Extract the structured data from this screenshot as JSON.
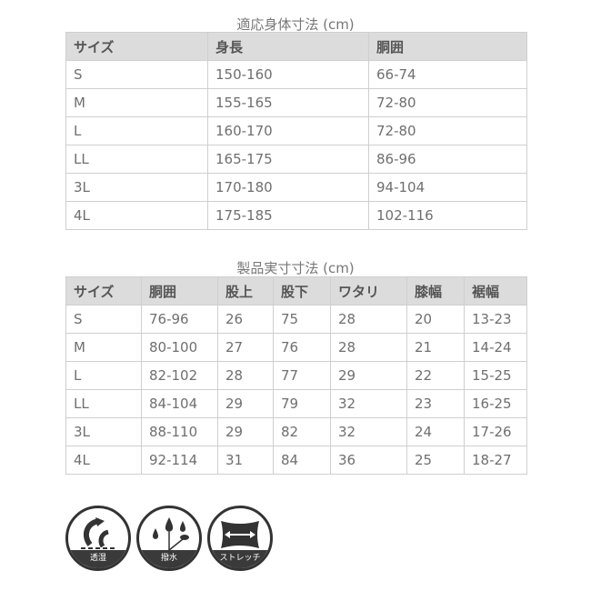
{
  "table1": {
    "title": "適応身体寸法 (cm)",
    "headers": [
      "サイズ",
      "身長",
      "胴囲"
    ],
    "rows": [
      [
        "S",
        "150-160",
        "66-74"
      ],
      [
        "M",
        "155-165",
        "72-80"
      ],
      [
        "L",
        "160-170",
        "72-80"
      ],
      [
        "LL",
        "165-175",
        "86-96"
      ],
      [
        "3L",
        "170-180",
        "94-104"
      ],
      [
        "4L",
        "175-185",
        "102-116"
      ]
    ]
  },
  "table2": {
    "title": "製品実寸寸法 (cm)",
    "headers": [
      "サイズ",
      "胴囲",
      "股上",
      "股下",
      "ワタリ",
      "膝幅",
      "裾幅"
    ],
    "rows": [
      [
        "S",
        "76-96",
        "26",
        "75",
        "28",
        "20",
        "13-23"
      ],
      [
        "M",
        "80-100",
        "27",
        "76",
        "28",
        "21",
        "14-24"
      ],
      [
        "L",
        "82-102",
        "28",
        "77",
        "29",
        "22",
        "15-25"
      ],
      [
        "LL",
        "84-104",
        "29",
        "79",
        "32",
        "23",
        "16-25"
      ],
      [
        "3L",
        "88-110",
        "29",
        "82",
        "32",
        "24",
        "17-26"
      ],
      [
        "4L",
        "92-114",
        "31",
        "84",
        "36",
        "25",
        "18-27"
      ]
    ]
  },
  "icons": [
    {
      "name": "moisture-permeable-icon",
      "label": "透湿"
    },
    {
      "name": "water-repellent-icon",
      "label": "撥水"
    },
    {
      "name": "stretch-icon",
      "label": "ストレッチ"
    }
  ]
}
